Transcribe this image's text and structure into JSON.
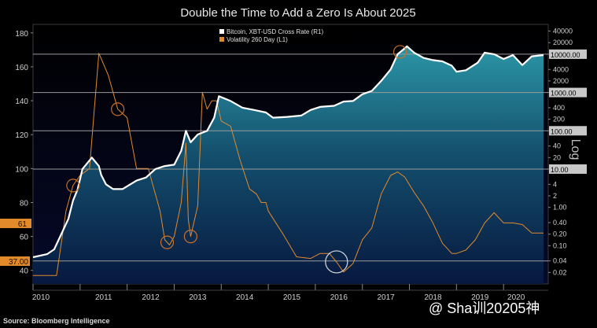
{
  "chart_data": {
    "type": "area",
    "title": "Double the Time to Add a Zero Is About 2025",
    "source": "Source: Bloomberg Intelligence",
    "watermark": "@ Sha训20205神",
    "x_ticks": [
      "2010",
      "2011",
      "2012",
      "2013",
      "2014",
      "2015",
      "2016",
      "2017",
      "2018",
      "2019",
      "2020"
    ],
    "left_axis": {
      "ticks": [
        40,
        60,
        80,
        100,
        120,
        140,
        160,
        180
      ],
      "ylim": [
        32,
        185
      ],
      "current_label": "61",
      "bottom_label": "37.00"
    },
    "right_axis": {
      "label": "Log",
      "scale": "log",
      "ticks": [
        "40000",
        "20000",
        "10000",
        "4000",
        "2000",
        "1000",
        "400",
        "200",
        "100",
        "40",
        "20",
        "10",
        "4",
        "2",
        "1.00",
        "0.40",
        "0.20",
        "0.10",
        "0.04",
        "0.02"
      ],
      "ylim": [
        0.01,
        60000
      ]
    },
    "reference_lines": [
      {
        "value": 10000,
        "label": "10000.00"
      },
      {
        "value": 1000,
        "label": "1000.00"
      },
      {
        "value": 100,
        "label": "100.00"
      },
      {
        "value": 10,
        "label": "10.00"
      },
      {
        "value": 0.04
      }
    ],
    "legend": {
      "placement": "top-center",
      "entries": [
        {
          "name": "Bitcoin, XBT-USD Cross Rate  (R1)",
          "color": "#ffffff"
        },
        {
          "name": "Volatility 260 Day (L1)",
          "color": "#e08a2c"
        }
      ]
    },
    "series": [
      {
        "name": "Bitcoin, XBT-USD Cross Rate  (R1)",
        "axis": "right",
        "color": "#ffffff",
        "x": [
          2010.0,
          2010.3,
          2010.45,
          2010.6,
          2010.75,
          2010.85,
          2010.95,
          2011.05,
          2011.25,
          2011.4,
          2011.45,
          2011.55,
          2011.7,
          2011.9,
          2012.2,
          2012.4,
          2012.6,
          2012.8,
          2013.0,
          2013.15,
          2013.25,
          2013.35,
          2013.5,
          2013.7,
          2013.85,
          2013.95,
          2014.2,
          2014.45,
          2014.7,
          2014.95,
          2015.1,
          2015.4,
          2015.7,
          2015.9,
          2016.1,
          2016.4,
          2016.6,
          2016.8,
          2017.0,
          2017.2,
          2017.4,
          2017.6,
          2017.75,
          2017.95,
          2018.1,
          2018.3,
          2018.5,
          2018.7,
          2018.9,
          2019.0,
          2019.2,
          2019.45,
          2019.6,
          2019.8,
          2020.0,
          2020.2,
          2020.4,
          2020.6,
          2020.85
        ],
        "values": [
          0.05,
          0.06,
          0.08,
          0.2,
          0.5,
          1.5,
          3,
          10,
          20,
          12,
          7,
          4,
          3,
          3,
          5,
          6,
          10,
          12,
          13,
          30,
          100,
          50,
          80,
          100,
          220,
          800,
          600,
          400,
          350,
          300,
          220,
          230,
          250,
          350,
          420,
          450,
          580,
          600,
          900,
          1100,
          2000,
          4000,
          10000,
          16000,
          11000,
          8000,
          7000,
          6500,
          5000,
          3500,
          3800,
          6000,
          11000,
          10000,
          7500,
          9500,
          5200,
          8800,
          9500
        ]
      },
      {
        "name": "Volatility 260 Day (L1)",
        "axis": "left",
        "color": "#e08a2c",
        "x": [
          2010.0,
          2010.5,
          2010.7,
          2010.85,
          2011.0,
          2011.2,
          2011.4,
          2011.6,
          2011.8,
          2012.0,
          2012.2,
          2012.45,
          2012.55,
          2012.7,
          2012.8,
          2012.9,
          2013.0,
          2013.15,
          2013.25,
          2013.3,
          2013.35,
          2013.5,
          2013.6,
          2013.7,
          2013.8,
          2013.9,
          2014.0,
          2014.2,
          2014.4,
          2014.6,
          2014.75,
          2014.85,
          2014.95,
          2015.0,
          2015.3,
          2015.6,
          2015.9,
          2016.1,
          2016.3,
          2016.45,
          2016.6,
          2016.8,
          2017.0,
          2017.2,
          2017.4,
          2017.6,
          2017.75,
          2017.9,
          2018.1,
          2018.3,
          2018.5,
          2018.7,
          2018.9,
          2019.0,
          2019.2,
          2019.4,
          2019.6,
          2019.8,
          2020.0,
          2020.2,
          2020.4,
          2020.6,
          2020.85
        ],
        "values": [
          37,
          37,
          75,
          90,
          96,
          100,
          168,
          155,
          135,
          130,
          100,
          100,
          90,
          75,
          58,
          55,
          60,
          80,
          115,
          70,
          60,
          78,
          145,
          135,
          140,
          140,
          128,
          125,
          105,
          88,
          85,
          80,
          80,
          75,
          62,
          48,
          47,
          50,
          50,
          45,
          39,
          44,
          58,
          65,
          85,
          96,
          98,
          95,
          86,
          78,
          68,
          56,
          50,
          50,
          52,
          58,
          68,
          74,
          68,
          68,
          67,
          62,
          62
        ]
      }
    ],
    "highlights": [
      2010.85,
      2011.8,
      2012.85,
      2013.35,
      2016.45,
      2017.8
    ]
  }
}
